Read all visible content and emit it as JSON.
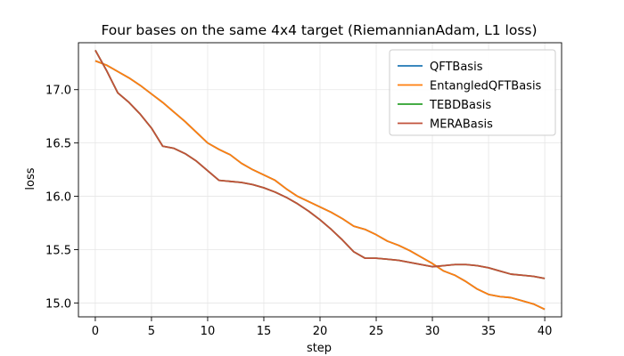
{
  "chart_data": {
    "type": "line",
    "title": "Four bases on the same 4x4 target (RiemannianAdam, L1 loss)",
    "xlabel": "step",
    "ylabel": "loss",
    "xlim": [
      -1.5,
      41.5
    ],
    "ylim": [
      14.87,
      17.44
    ],
    "xticks": [
      0,
      5,
      10,
      15,
      20,
      25,
      30,
      35,
      40
    ],
    "yticks": [
      15.0,
      15.5,
      16.0,
      16.5,
      17.0
    ],
    "ytick_labels": [
      "15.0",
      "15.5",
      "16.0",
      "16.5",
      "17.0"
    ],
    "grid": true,
    "legend_position": "upper right",
    "x": [
      0,
      1,
      2,
      3,
      4,
      5,
      6,
      7,
      8,
      9,
      10,
      11,
      12,
      13,
      14,
      15,
      16,
      17,
      18,
      19,
      20,
      21,
      22,
      23,
      24,
      25,
      26,
      27,
      28,
      29,
      30,
      31,
      32,
      33,
      34,
      35,
      36,
      37,
      38,
      39,
      40
    ],
    "series": [
      {
        "name": "QFTBasis",
        "color": "#1f77b4",
        "values": [
          17.27,
          17.23,
          17.17,
          17.11,
          17.04,
          16.96,
          16.88,
          16.79,
          16.7,
          16.6,
          16.5,
          16.44,
          16.39,
          16.31,
          16.25,
          16.2,
          16.15,
          16.07,
          16.0,
          15.95,
          15.9,
          15.85,
          15.79,
          15.72,
          15.69,
          15.64,
          15.58,
          15.54,
          15.49,
          15.43,
          15.37,
          15.3,
          15.26,
          15.2,
          15.13,
          15.08,
          15.06,
          15.05,
          15.02,
          14.99,
          14.94
        ]
      },
      {
        "name": "EntangledQFTBasis",
        "color": "#ff7f0e",
        "values": [
          17.27,
          17.23,
          17.17,
          17.11,
          17.04,
          16.96,
          16.88,
          16.79,
          16.7,
          16.6,
          16.5,
          16.44,
          16.39,
          16.31,
          16.25,
          16.2,
          16.15,
          16.07,
          16.0,
          15.95,
          15.9,
          15.85,
          15.79,
          15.72,
          15.69,
          15.64,
          15.58,
          15.54,
          15.49,
          15.43,
          15.37,
          15.3,
          15.26,
          15.2,
          15.13,
          15.08,
          15.06,
          15.05,
          15.02,
          14.99,
          14.94
        ]
      },
      {
        "name": "TEBDBasis",
        "color": "#2ca02c",
        "values": [
          17.37,
          17.18,
          16.97,
          16.88,
          16.77,
          16.64,
          16.47,
          16.45,
          16.4,
          16.33,
          16.24,
          16.15,
          16.14,
          16.13,
          16.11,
          16.08,
          16.04,
          15.99,
          15.93,
          15.86,
          15.78,
          15.69,
          15.59,
          15.48,
          15.42,
          15.42,
          15.41,
          15.4,
          15.38,
          15.36,
          15.34,
          15.35,
          15.36,
          15.36,
          15.35,
          15.33,
          15.3,
          15.27,
          15.26,
          15.25,
          15.23
        ]
      },
      {
        "name": "MERABasis",
        "color": "#c0503a",
        "values": [
          17.37,
          17.18,
          16.97,
          16.88,
          16.77,
          16.64,
          16.47,
          16.45,
          16.4,
          16.33,
          16.24,
          16.15,
          16.14,
          16.13,
          16.11,
          16.08,
          16.04,
          15.99,
          15.93,
          15.86,
          15.78,
          15.69,
          15.59,
          15.48,
          15.42,
          15.42,
          15.41,
          15.4,
          15.38,
          15.36,
          15.34,
          15.35,
          15.36,
          15.36,
          15.35,
          15.33,
          15.3,
          15.27,
          15.26,
          15.25,
          15.23
        ]
      }
    ]
  }
}
